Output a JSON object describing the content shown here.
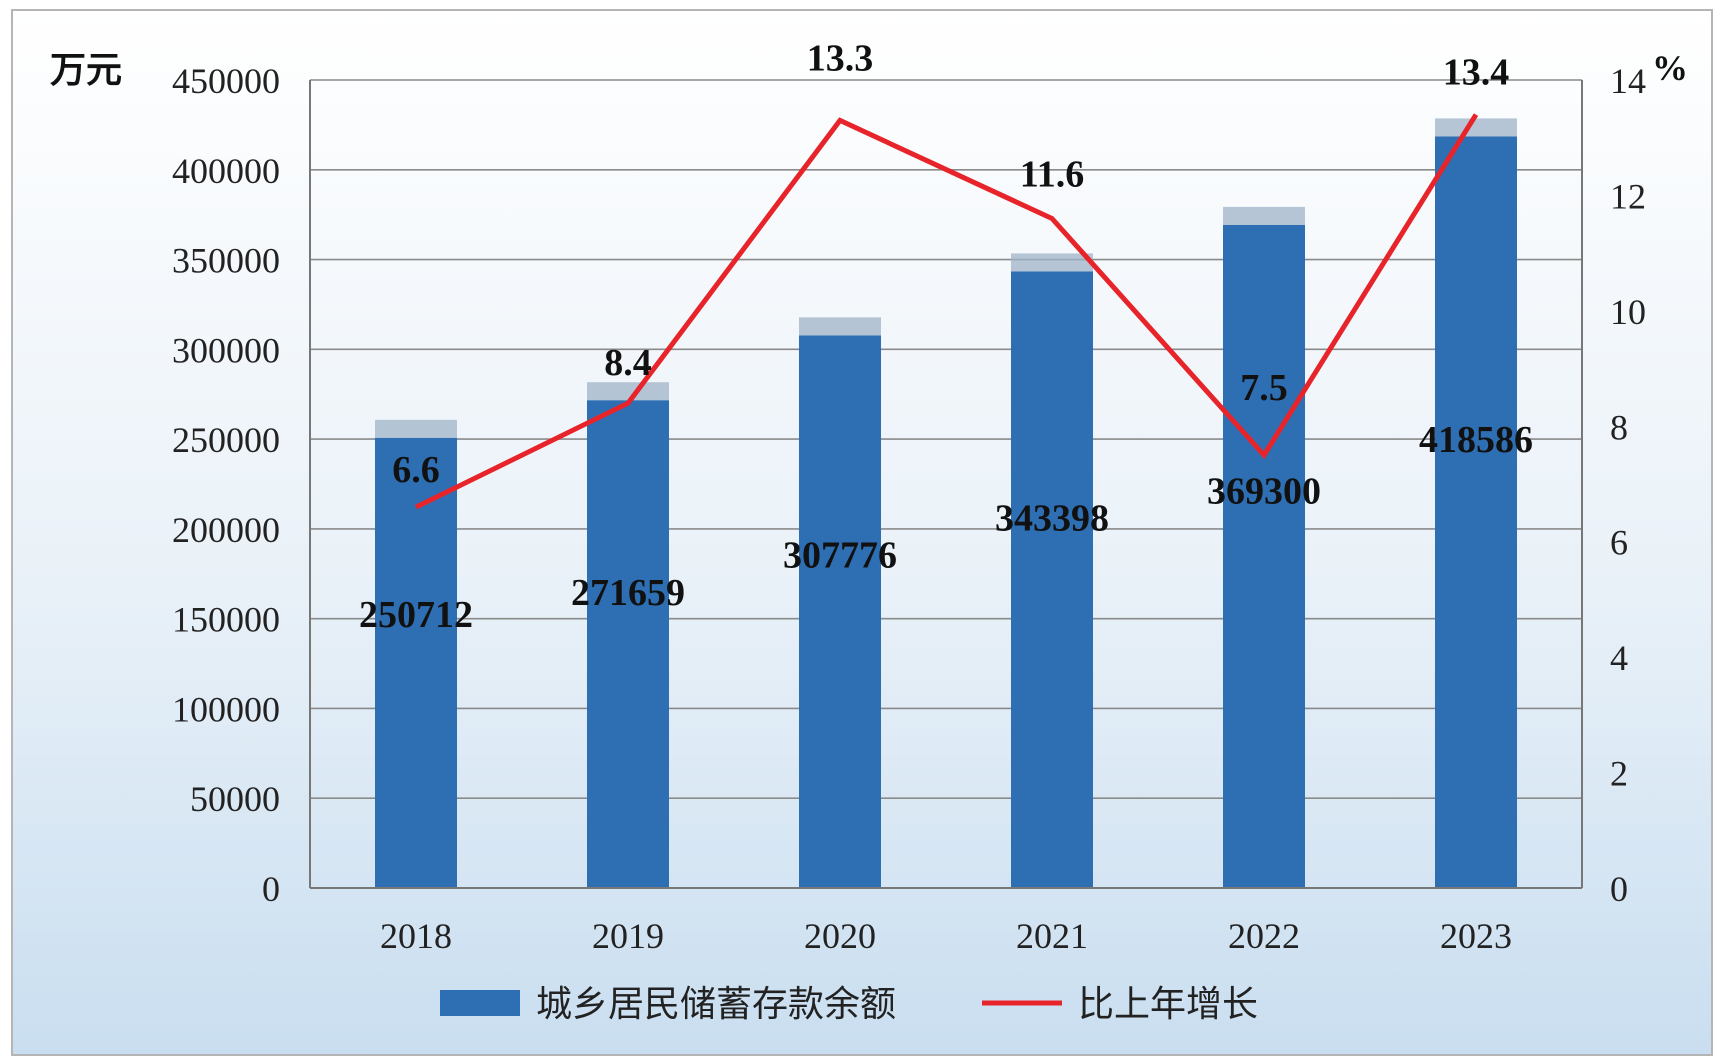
{
  "colors": {
    "bar": "#2e6fb4",
    "bar_top": "#9fb3c8",
    "line": "#e8242b",
    "grid": "#8a8a8a",
    "bg_top": "#ffffff",
    "bg_bottom": "#cfe2f3"
  },
  "chart_data": {
    "type": "bar",
    "categories": [
      "2018",
      "2019",
      "2020",
      "2021",
      "2022",
      "2023"
    ],
    "series": [
      {
        "name": "城乡居民储蓄存款余额",
        "type": "bar",
        "axis": "left",
        "values": [
          250712,
          271659,
          307776,
          343398,
          369300,
          418586
        ],
        "labels": [
          "250712",
          "271659",
          "307776",
          "343398",
          "369300",
          "418586"
        ]
      },
      {
        "name": "比上年增长",
        "type": "line",
        "axis": "right",
        "values": [
          6.6,
          8.4,
          13.3,
          11.6,
          7.5,
          13.4
        ],
        "labels": [
          "6.6",
          "8.4",
          "13.3",
          "11.6",
          "7.5",
          "13.4"
        ]
      }
    ],
    "y_left": {
      "unit": "万元",
      "ylim": [
        0,
        450000
      ],
      "ticks": [
        "0",
        "50000",
        "100000",
        "150000",
        "200000",
        "250000",
        "300000",
        "350000",
        "400000",
        "450000"
      ]
    },
    "y_right": {
      "unit": "%",
      "ylim": [
        0,
        14
      ],
      "ticks": [
        "0",
        "2",
        "4",
        "6",
        "8",
        "10",
        "12",
        "14"
      ]
    },
    "grid": true,
    "legend_position": "bottom"
  }
}
